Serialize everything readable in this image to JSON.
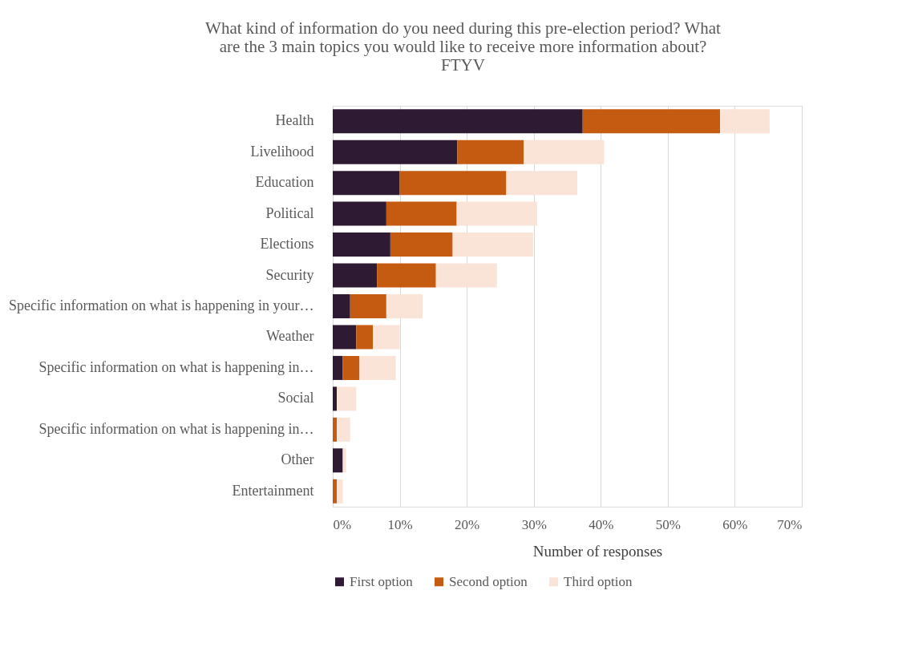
{
  "chart_data": {
    "type": "bar",
    "orientation": "horizontal",
    "stacked": true,
    "title": "What kind of information do you need during this pre-election period? What\nare the 3 main topics you would like to receive more information about?\nFTYV",
    "xlabel": "Number of responses",
    "categories": [
      "Health",
      "Livelihood",
      "Education",
      "Political",
      "Elections",
      "Security",
      "Specific information on what is happening in your…",
      "Weather",
      "Specific information on what is happening in…",
      "Social",
      "Specific information on what is happening in…",
      "Other",
      "Entertainment"
    ],
    "series": [
      {
        "name": "First option",
        "color": "#2e1a33",
        "values": [
          37.3,
          18.6,
          10.0,
          8.0,
          8.6,
          6.6,
          2.6,
          3.5,
          1.5,
          0.6,
          0,
          1.5,
          0
        ]
      },
      {
        "name": "Second option",
        "color": "#c55a11",
        "values": [
          20.5,
          9.9,
          15.9,
          10.5,
          9.3,
          8.8,
          5.4,
          2.5,
          2.5,
          0,
          0.6,
          0,
          0.6
        ]
      },
      {
        "name": "Third option",
        "color": "#fae3d7",
        "values": [
          7.4,
          12.0,
          10.6,
          12.0,
          12.0,
          9.1,
          5.4,
          4.0,
          5.4,
          2.9,
          2.0,
          0.5,
          0.9
        ]
      }
    ],
    "xlim": [
      0,
      70
    ],
    "xticks": [
      {
        "value": 0,
        "label": "0%"
      },
      {
        "value": 10,
        "label": "10%"
      },
      {
        "value": 20,
        "label": "20%"
      },
      {
        "value": 30,
        "label": "30%"
      },
      {
        "value": 40,
        "label": "40%"
      },
      {
        "value": 50,
        "label": "50%"
      },
      {
        "value": 60,
        "label": "60%"
      },
      {
        "value": 70,
        "label": "70%"
      }
    ],
    "grid": "x",
    "legend": "bottom"
  }
}
